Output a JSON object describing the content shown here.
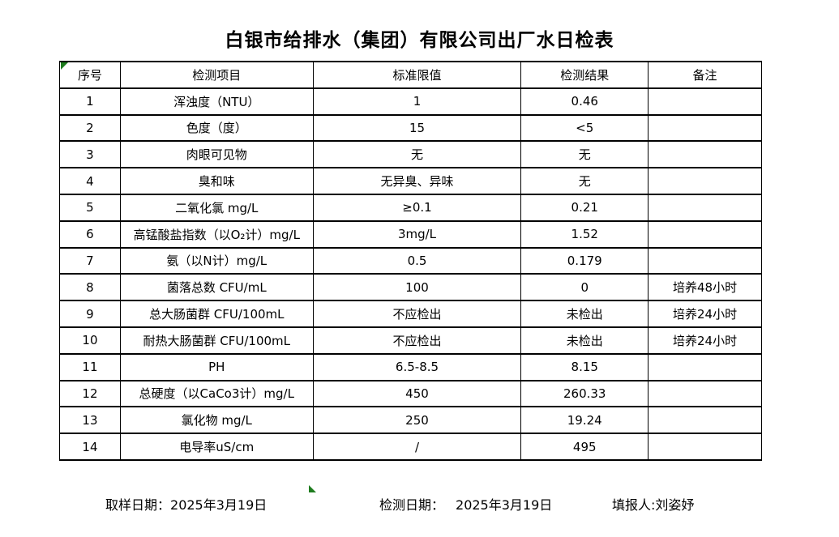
{
  "title": "白银市给排水（集团）有限公司出厂水日检表",
  "table": {
    "headers": [
      "序号",
      "检测项目",
      "标准限值",
      "检测结果",
      "备注"
    ],
    "rows": [
      {
        "no": "1",
        "item": "浑浊度（NTU）",
        "standard": "1",
        "result": "0.46",
        "remark": ""
      },
      {
        "no": "2",
        "item": "色度（度）",
        "standard": "15",
        "result": "<5",
        "remark": ""
      },
      {
        "no": "3",
        "item": "肉眼可见物",
        "standard": "无",
        "result": "无",
        "remark": ""
      },
      {
        "no": "4",
        "item": "臭和味",
        "standard": "无异臭、异味",
        "result": "无",
        "remark": ""
      },
      {
        "no": "5",
        "item": "二氧化氯 mg/L",
        "standard": "≥0.1",
        "result": "0.21",
        "remark": ""
      },
      {
        "no": "6",
        "item": "高锰酸盐指数（以O₂计）mg/L",
        "standard": "3mg/L",
        "result": "1.52",
        "remark": ""
      },
      {
        "no": "7",
        "item": "氨（以N计）mg/L",
        "standard": "0.5",
        "result": "0.179",
        "remark": ""
      },
      {
        "no": "8",
        "item": "菌落总数 CFU/mL",
        "standard": "100",
        "result": "0",
        "remark": "培养48小时"
      },
      {
        "no": "9",
        "item": "总大肠菌群 CFU/100mL",
        "standard": "不应检出",
        "result": "未检出",
        "remark": "培养24小时"
      },
      {
        "no": "10",
        "item": "耐热大肠菌群 CFU/100mL",
        "standard": "不应检出",
        "result": "未检出",
        "remark": "培养24小时"
      },
      {
        "no": "11",
        "item": "PH",
        "standard": "6.5-8.5",
        "result": "8.15",
        "remark": ""
      },
      {
        "no": "12",
        "item": "总硬度（以CaCo3计）mg/L",
        "standard": "450",
        "result": "260.33",
        "remark": ""
      },
      {
        "no": "13",
        "item": "氯化物 mg/L",
        "standard": "250",
        "result": "19.24",
        "remark": ""
      },
      {
        "no": "14",
        "item": "电导率uS/cm",
        "standard": "/",
        "result": "495",
        "remark": ""
      }
    ]
  },
  "footer": {
    "sampling_date_label": "取样日期：",
    "sampling_date": "2025年3月19日",
    "testing_date_label": "检测日期：",
    "testing_date": "2025年3月19日",
    "reporter_label": "填报人:",
    "reporter": "刘姿妤"
  },
  "colors": {
    "marker_green": "#1e7c1e",
    "border": "#000000",
    "background": "#ffffff"
  }
}
